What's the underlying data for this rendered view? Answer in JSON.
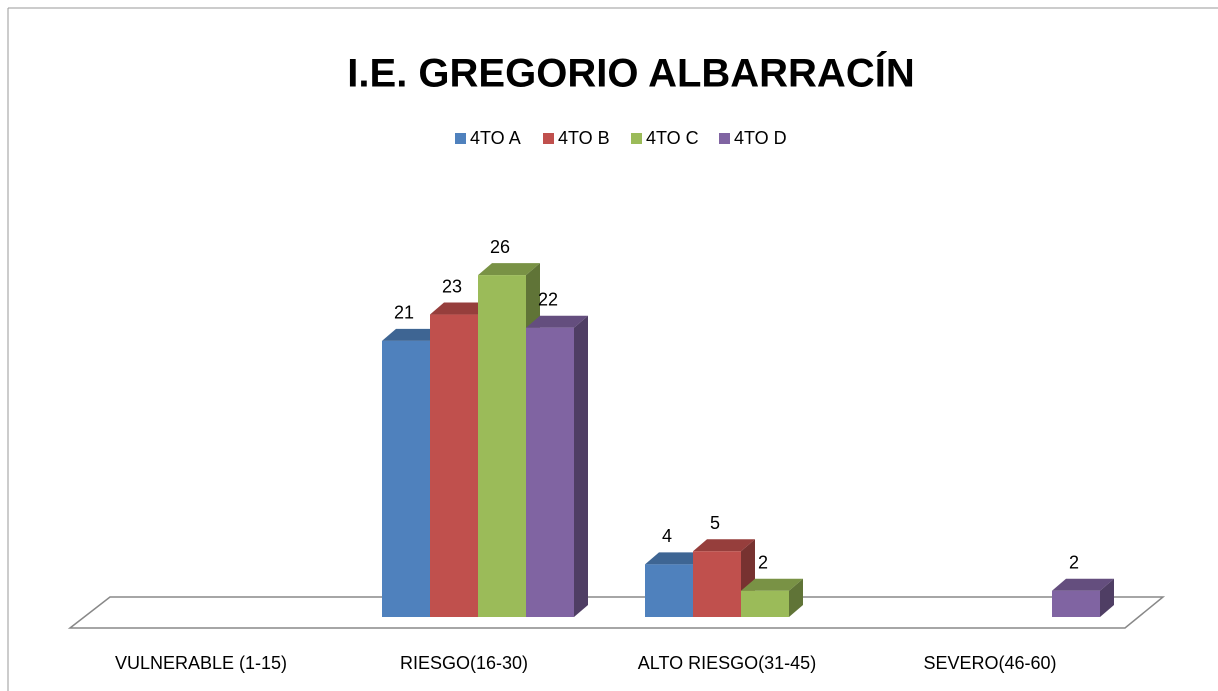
{
  "chart_data": {
    "type": "bar3d",
    "title": "I.E. GREGORIO ALBARRACÍN",
    "categories": [
      "VULNERABLE (1-15)",
      "RIESGO(16-30)",
      "ALTO RIESGO(31-45)",
      "SEVERO(46-60)"
    ],
    "series": [
      {
        "name": "4TO A",
        "color": "#4f81bd",
        "values": [
          null,
          21,
          4,
          null
        ]
      },
      {
        "name": "4TO B",
        "color": "#c0504d",
        "values": [
          null,
          23,
          5,
          null
        ]
      },
      {
        "name": "4TO C",
        "color": "#9bbb59",
        "values": [
          null,
          26,
          2,
          null
        ]
      },
      {
        "name": "4TO D",
        "color": "#8064a2",
        "values": [
          null,
          22,
          null,
          2
        ]
      }
    ],
    "legend": "top"
  }
}
